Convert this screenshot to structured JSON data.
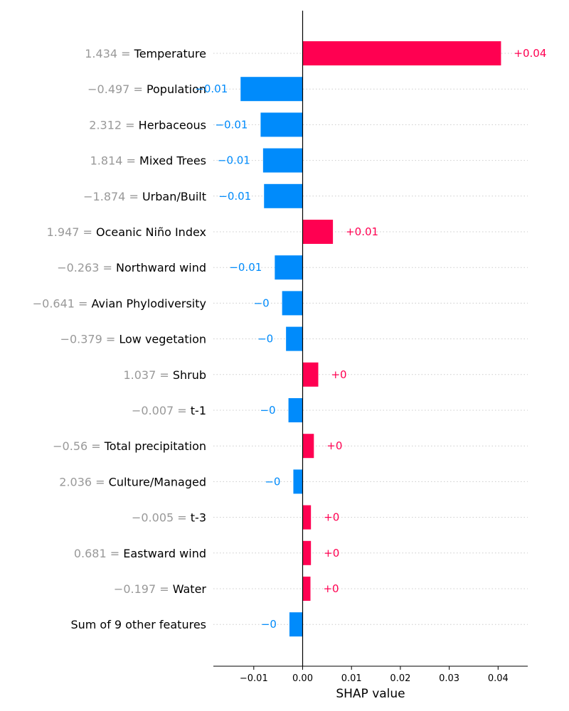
{
  "chart_data": {
    "type": "bar",
    "orientation": "horizontal",
    "title": "",
    "xlabel": "SHAP value",
    "ylabel": "",
    "xlim": [
      -0.0183,
      0.0462
    ],
    "x_ticks": [
      -0.01,
      0.0,
      0.01,
      0.02,
      0.03,
      0.04
    ],
    "x_tick_labels": [
      "−0.01",
      "0.00",
      "0.01",
      "0.02",
      "0.03",
      "0.04"
    ],
    "grid": false,
    "colors": {
      "positive": "#ff0051",
      "negative": "#008bfb",
      "feature_value": "#999999"
    },
    "features": [
      {
        "value_label": "1.434 = ",
        "name": "Temperature",
        "shap": 0.0406,
        "label": "+0.04"
      },
      {
        "value_label": "−0.497 = ",
        "name": "Population",
        "shap": -0.0127,
        "label": "−0.01"
      },
      {
        "value_label": "2.312 = ",
        "name": "Herbaceous",
        "shap": -0.0086,
        "label": "−0.01"
      },
      {
        "value_label": "1.814 = ",
        "name": "Mixed Trees",
        "shap": -0.0081,
        "label": "−0.01"
      },
      {
        "value_label": "−1.874 = ",
        "name": "Urban/Built",
        "shap": -0.0079,
        "label": "−0.01"
      },
      {
        "value_label": "1.947 = ",
        "name": "Oceanic Niño Index",
        "shap": 0.0062,
        "label": "+0.01"
      },
      {
        "value_label": "−0.263 = ",
        "name": "Northward wind",
        "shap": -0.0057,
        "label": "−0.01"
      },
      {
        "value_label": "−0.641 = ",
        "name": "Avian Phylodiversity",
        "shap": -0.0042,
        "label": "−0"
      },
      {
        "value_label": "−0.379 = ",
        "name": "Low vegetation",
        "shap": -0.0034,
        "label": "−0"
      },
      {
        "value_label": "1.037 = ",
        "name": "Shrub",
        "shap": 0.0032,
        "label": "+0"
      },
      {
        "value_label": "−0.007 = ",
        "name": "t-1",
        "shap": -0.0029,
        "label": "−0"
      },
      {
        "value_label": "−0.56 = ",
        "name": "Total precipitation",
        "shap": 0.0023,
        "label": "+0"
      },
      {
        "value_label": "2.036 = ",
        "name": "Culture/Managed",
        "shap": -0.0019,
        "label": "−0"
      },
      {
        "value_label": "−0.005 = ",
        "name": "t-3",
        "shap": 0.0017,
        "label": "+0"
      },
      {
        "value_label": "0.681 = ",
        "name": "Eastward wind",
        "shap": 0.0017,
        "label": "+0"
      },
      {
        "value_label": "−0.197 = ",
        "name": "Water",
        "shap": 0.0016,
        "label": "+0"
      },
      {
        "value_label": "",
        "name": "Sum of 9 other features",
        "shap": -0.0027,
        "label": "−0"
      }
    ]
  }
}
